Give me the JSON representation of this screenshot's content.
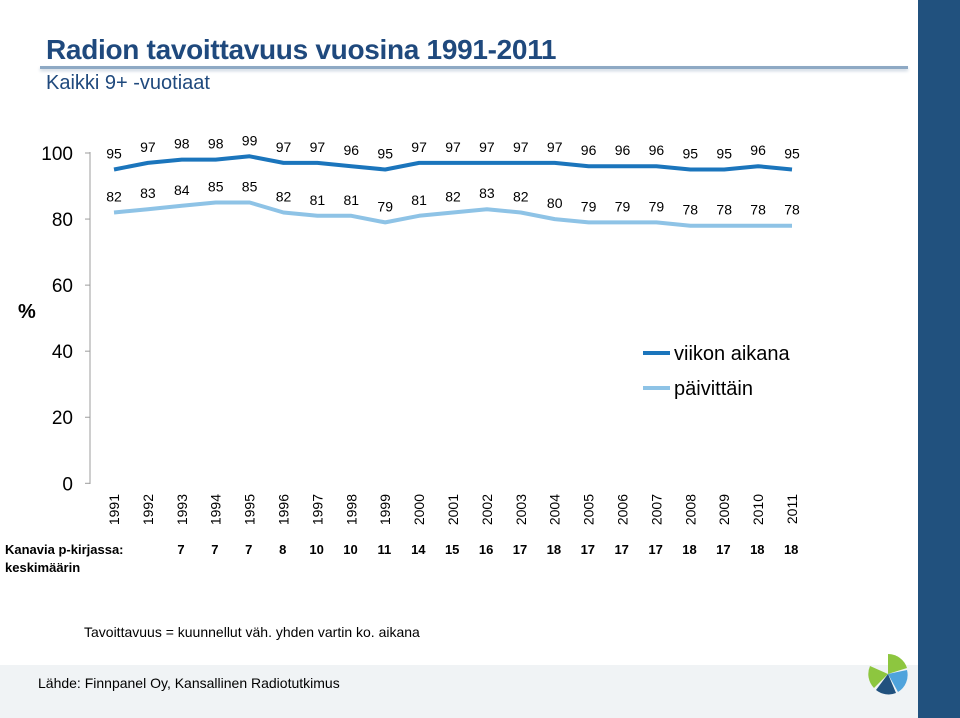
{
  "header": {
    "title": "Radion tavoittavuus vuosina 1991-2011",
    "subtitle": "Kaikki 9+ -vuotiaat"
  },
  "chart_data": {
    "type": "line",
    "title": "Radion tavoittavuus vuosina 1991-2011",
    "subtitle": "Kaikki 9+ -vuotiaat",
    "xlabel": "",
    "ylabel": "%",
    "ylim": [
      0,
      100
    ],
    "y_ticks": [
      "0",
      "20",
      "40",
      "60",
      "80",
      "100"
    ],
    "x": [
      "1991",
      "1992",
      "1993",
      "1994",
      "1995",
      "1996",
      "1997",
      "1998",
      "1999",
      "2000",
      "2001",
      "2002",
      "2003",
      "2004",
      "2005",
      "2006",
      "2007",
      "2008",
      "2009",
      "2010",
      "2011"
    ],
    "series": [
      {
        "name": "viikon aikana",
        "color": "#1b75bc",
        "values": [
          95,
          97,
          98,
          98,
          99,
          97,
          97,
          96,
          95,
          97,
          97,
          97,
          97,
          97,
          96,
          96,
          96,
          95,
          95,
          96,
          95
        ]
      },
      {
        "name": "päivittäin",
        "color": "#8ec3e6",
        "values": [
          82,
          83,
          84,
          85,
          85,
          82,
          81,
          81,
          79,
          81,
          82,
          83,
          82,
          80,
          79,
          79,
          79,
          78,
          78,
          78,
          78
        ]
      }
    ],
    "legend_position": "right",
    "grid": false,
    "table_row": {
      "label": "Kanavia p-kirjassa: keskimäärin",
      "values": [
        7,
        7,
        7,
        8,
        10,
        10,
        11,
        14,
        15,
        16,
        17,
        18,
        17,
        17,
        17,
        18,
        17,
        18,
        18
      ]
    }
  },
  "footer": {
    "note": "Tavoittavuus = kuunnellut väh. yhden vartin ko. aikana",
    "source": "Lähde: Finnpanel Oy, Kansallinen Radiotutkimus"
  },
  "colors": {
    "title": "#1f497d",
    "side_bar": "#21517e",
    "accent_green": "#8dc63f"
  },
  "icons": {
    "logo": "finnpanel-logo-icon"
  }
}
